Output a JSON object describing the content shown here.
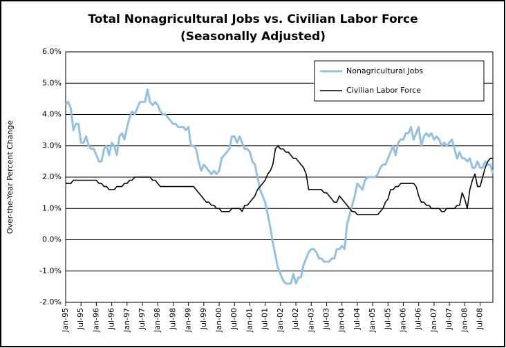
{
  "chart_data": {
    "type": "line",
    "title": [
      "Total Nonagricultural Jobs vs. Civilian Labor Force",
      "(Seasonally Adjusted)"
    ],
    "y_label": "Over-the-Year Percent Change",
    "categories": [
      "Jan-95",
      null,
      null,
      null,
      null,
      null,
      "Jul-95",
      null,
      null,
      null,
      null,
      null,
      "Jan-96",
      null,
      null,
      null,
      null,
      null,
      "Jul-96",
      null,
      null,
      null,
      null,
      null,
      "Jan-97",
      null,
      null,
      null,
      null,
      null,
      "Jul-97",
      null,
      null,
      null,
      null,
      null,
      "Jan-98",
      null,
      null,
      null,
      null,
      null,
      "Jul-98",
      null,
      null,
      null,
      null,
      null,
      "Jan-99",
      null,
      null,
      null,
      null,
      null,
      "Jul-99",
      null,
      null,
      null,
      null,
      null,
      "Jan-00",
      null,
      null,
      null,
      null,
      null,
      "Jul-00",
      null,
      null,
      null,
      null,
      null,
      "Jan-01",
      null,
      null,
      null,
      null,
      null,
      "Jul-01",
      null,
      null,
      null,
      null,
      null,
      "Jan-02",
      null,
      null,
      null,
      null,
      null,
      "Jul-02",
      null,
      null,
      null,
      null,
      null,
      "Jan-03",
      null,
      null,
      null,
      null,
      null,
      "Jul-03",
      null,
      null,
      null,
      null,
      null,
      "Jan-04",
      null,
      null,
      null,
      null,
      null,
      "Jul-04",
      null,
      null,
      null,
      null,
      null,
      "Jan-05",
      null,
      null,
      null,
      null,
      null,
      "Jul-05",
      null,
      null,
      null,
      null,
      null,
      "Jan-06",
      null,
      null,
      null,
      null,
      null,
      "Jul-06",
      null,
      null,
      null,
      null,
      null,
      "Jan-07",
      null,
      null,
      null,
      null,
      null,
      "Jul-07",
      null,
      null,
      null,
      null,
      null,
      "Jan-08",
      null,
      null,
      null,
      null,
      null,
      "Jul-08",
      null,
      null,
      null,
      null,
      null
    ],
    "series": [
      {
        "name": "Nonagricultural Jobs",
        "color": "#92c1e3",
        "values": [
          4.3,
          4.4,
          4.2,
          3.5,
          3.7,
          3.7,
          3.1,
          3.1,
          3.3,
          3.0,
          2.9,
          2.9,
          2.7,
          2.5,
          2.5,
          2.9,
          3.0,
          2.7,
          3.1,
          3.0,
          2.7,
          3.3,
          3.4,
          3.2,
          3.6,
          3.9,
          4.1,
          4.0,
          4.2,
          4.4,
          4.4,
          4.4,
          4.8,
          4.4,
          4.3,
          4.4,
          4.3,
          4.1,
          4.0,
          4.0,
          3.9,
          3.8,
          3.7,
          3.7,
          3.6,
          3.6,
          3.6,
          3.5,
          3.6,
          3.0,
          3.0,
          2.9,
          2.5,
          2.2,
          2.4,
          2.3,
          2.2,
          2.1,
          2.2,
          2.1,
          2.2,
          2.6,
          2.7,
          2.8,
          2.9,
          3.3,
          3.3,
          3.1,
          3.3,
          3.1,
          2.9,
          2.9,
          2.8,
          2.5,
          2.4,
          2.0,
          1.6,
          1.4,
          1.2,
          0.8,
          0.4,
          -0.1,
          -0.5,
          -0.9,
          -1.1,
          -1.3,
          -1.4,
          -1.4,
          -1.4,
          -1.1,
          -1.4,
          -1.2,
          -1.2,
          -0.8,
          -0.6,
          -0.4,
          -0.3,
          -0.3,
          -0.4,
          -0.6,
          -0.6,
          -0.7,
          -0.7,
          -0.7,
          -0.6,
          -0.6,
          -0.3,
          -0.3,
          -0.2,
          -0.3,
          0.5,
          0.8,
          1.1,
          1.4,
          1.8,
          1.7,
          1.6,
          1.9,
          2.0,
          2.0,
          2.0,
          2.0,
          2.1,
          2.3,
          2.4,
          2.4,
          2.6,
          2.8,
          3.0,
          2.7,
          3.1,
          3.2,
          3.2,
          3.4,
          3.4,
          3.6,
          3.2,
          3.4,
          3.6,
          3.0,
          3.3,
          3.4,
          3.3,
          3.4,
          3.2,
          3.3,
          3.2,
          3.0,
          3.1,
          3.0,
          3.1,
          3.2,
          2.9,
          2.6,
          2.8,
          2.6,
          2.6,
          2.5,
          2.6,
          2.3,
          2.3,
          2.5,
          2.3,
          2.3,
          2.5,
          2.4,
          2.4,
          2.1
        ]
      },
      {
        "name": "Civilian Labor Force",
        "color": "#000000",
        "values": [
          1.8,
          1.8,
          1.8,
          1.9,
          1.9,
          1.9,
          1.9,
          1.9,
          1.9,
          1.9,
          1.9,
          1.9,
          1.9,
          1.8,
          1.8,
          1.7,
          1.7,
          1.6,
          1.6,
          1.6,
          1.7,
          1.7,
          1.7,
          1.8,
          1.8,
          1.9,
          1.9,
          2.0,
          2.0,
          2.0,
          2.0,
          2.0,
          2.0,
          2.0,
          1.9,
          1.9,
          1.8,
          1.7,
          1.7,
          1.7,
          1.7,
          1.7,
          1.7,
          1.7,
          1.7,
          1.7,
          1.7,
          1.7,
          1.7,
          1.7,
          1.7,
          1.6,
          1.5,
          1.4,
          1.3,
          1.2,
          1.2,
          1.1,
          1.1,
          1.0,
          1.0,
          0.9,
          0.9,
          0.9,
          0.9,
          1.0,
          1.0,
          1.0,
          1.0,
          0.9,
          1.1,
          1.1,
          1.2,
          1.3,
          1.4,
          1.6,
          1.7,
          1.8,
          1.9,
          2.1,
          2.2,
          2.4,
          2.9,
          3.0,
          2.9,
          2.9,
          2.8,
          2.8,
          2.7,
          2.6,
          2.6,
          2.5,
          2.4,
          2.3,
          2.1,
          1.6,
          1.6,
          1.6,
          1.6,
          1.6,
          1.6,
          1.5,
          1.5,
          1.4,
          1.3,
          1.2,
          1.2,
          1.4,
          1.3,
          1.2,
          1.1,
          1.0,
          0.9,
          0.9,
          0.8,
          0.8,
          0.8,
          0.8,
          0.8,
          0.8,
          0.8,
          0.8,
          0.8,
          0.9,
          1.0,
          1.2,
          1.3,
          1.6,
          1.6,
          1.7,
          1.7,
          1.8,
          1.8,
          1.8,
          1.8,
          1.8,
          1.8,
          1.7,
          1.4,
          1.2,
          1.2,
          1.1,
          1.1,
          1.0,
          1.0,
          1.0,
          1.0,
          0.9,
          0.9,
          1.0,
          1.0,
          1.0,
          1.0,
          1.1,
          1.1,
          1.5,
          1.3,
          1.0,
          1.6,
          1.9,
          2.1,
          1.7,
          1.7,
          2.0,
          2.3,
          2.5,
          2.6,
          2.6
        ]
      }
    ],
    "ylim": [
      -2,
      6
    ],
    "yticks": [
      {
        "value": -2,
        "label": "-2.0%"
      },
      {
        "value": -1,
        "label": "-1.0%"
      },
      {
        "value": 0,
        "label": "0.0%"
      },
      {
        "value": 1,
        "label": "1.0%"
      },
      {
        "value": 2,
        "label": "2.0%"
      },
      {
        "value": 3,
        "label": "3.0%"
      },
      {
        "value": 4,
        "label": "4.0%"
      },
      {
        "value": 5,
        "label": "5.0%"
      },
      {
        "value": 6,
        "label": "6.0%"
      }
    ],
    "grid": true,
    "legend": "upper right"
  }
}
